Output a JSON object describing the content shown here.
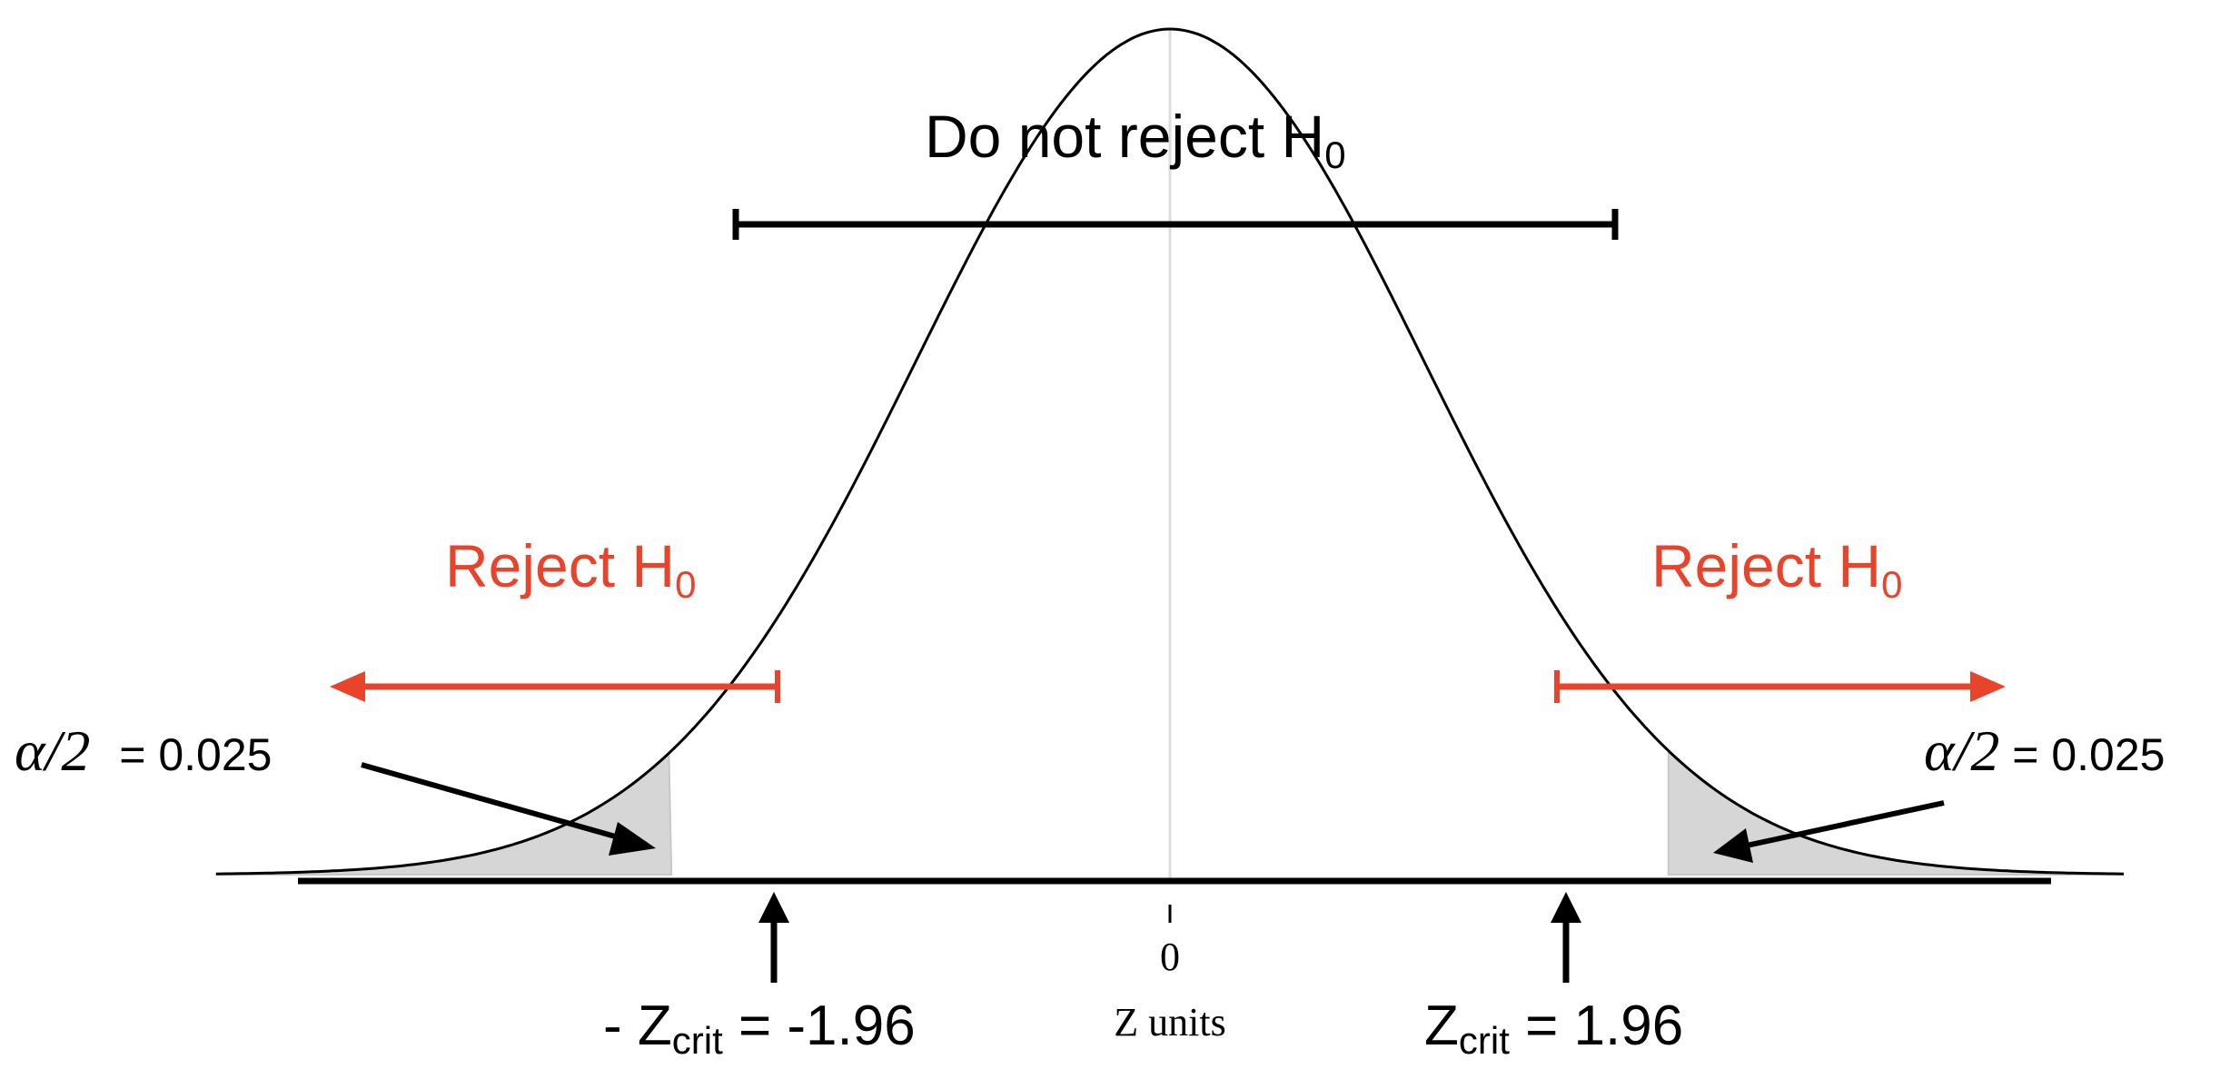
{
  "diagram": {
    "do_not_reject": {
      "text": "Do not reject H",
      "sub": "0"
    },
    "reject_left": {
      "text": "Reject H",
      "sub": "0"
    },
    "reject_right": {
      "text": "Reject H",
      "sub": "0"
    },
    "alpha_left": {
      "symbol": "α/2",
      "value": " = 0.025"
    },
    "alpha_right": {
      "symbol": "α/2",
      "value": " = 0.025"
    },
    "zcrit_left": {
      "prefix": "- Z",
      "sub": "crit",
      "value": " = -1.96"
    },
    "zcrit_right": {
      "prefix": "Z",
      "sub": "crit",
      "value": " = 1.96"
    },
    "axis": {
      "tick_label": "0",
      "label": "Z units"
    },
    "colors": {
      "reject": "#e8442b",
      "curve": "#000000",
      "tail_fill": "#d6d6d6",
      "center_line": "#dddddd"
    },
    "values": {
      "z_critical": 1.96,
      "tail_area": 0.025
    }
  }
}
